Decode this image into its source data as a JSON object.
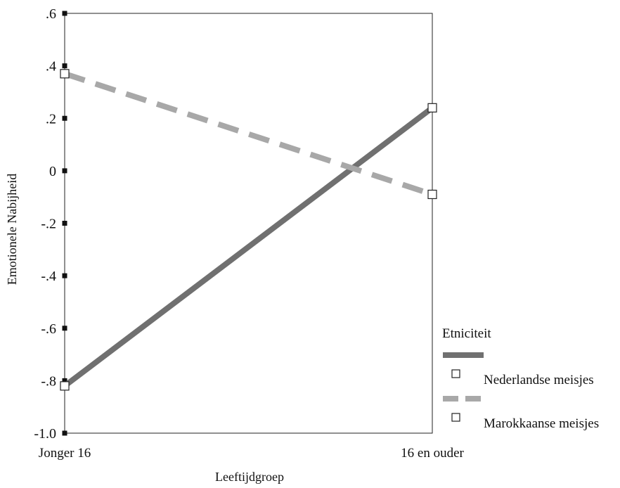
{
  "chart_data": {
    "type": "line",
    "title": "",
    "xlabel": "Leeftijdgroep",
    "ylabel": "Emotionele Nabijheid",
    "categories": [
      "Jonger 16",
      "16 en ouder"
    ],
    "ylim": [
      -1.0,
      0.6
    ],
    "yticks": [
      0.6,
      0.4,
      0.2,
      0,
      -0.2,
      -0.4,
      -0.6,
      -0.8,
      -1.0
    ],
    "ytick_labels": [
      ".6",
      ".4",
      ".2",
      "0",
      "-.2",
      "-.4",
      "-.6",
      "-.8",
      "-1.0"
    ],
    "grid": false,
    "legend_title": "Etniciteit",
    "legend_position": "right",
    "series": [
      {
        "name": "Nederlandse meisjes",
        "values": [
          -0.82,
          0.24
        ],
        "color": "#707070",
        "dash": "solid",
        "marker": "open-square"
      },
      {
        "name": "Marokkaanse meisjes",
        "values": [
          0.37,
          -0.09
        ],
        "color": "#a8a8a8",
        "dash": "dashed",
        "marker": "open-square"
      }
    ]
  }
}
